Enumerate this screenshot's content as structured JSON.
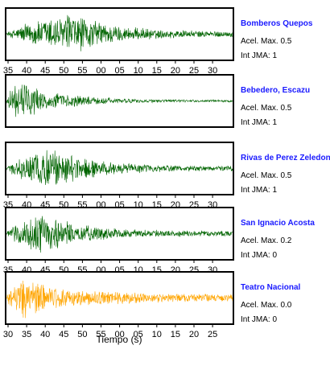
{
  "chart_data": {
    "type": "line",
    "xlabel": "Tiempo (s)",
    "stations": [
      {
        "name": "Bomberos Quepos",
        "acel_label": "Acel. Max. 0.5",
        "jma_label": "Int JMA: 1",
        "color": "#006400",
        "tick_labels": [
          "35",
          "40",
          "45",
          "50",
          "55",
          "00",
          "05",
          "10",
          "15",
          "20",
          "25",
          "30"
        ],
        "show_ticks": true,
        "envelope": {
          "peak_time": 0.3,
          "peak_amp": 0.95,
          "tail_amp": 0.12
        }
      },
      {
        "name": "Bebedero, Escazu",
        "acel_label": "Acel. Max. 0.5",
        "jma_label": "Int JMA: 1",
        "color": "#006400",
        "tick_labels": [],
        "show_ticks": false,
        "envelope": {
          "peak_time": 0.05,
          "peak_amp": 0.9,
          "tail_amp": 0.05
        }
      },
      {
        "name": "Rivas de Perez Zeledon",
        "acel_label": "Acel. Max. 0.5",
        "jma_label": "Int JMA: 1",
        "color": "#006400",
        "tick_labels": [
          "35",
          "40",
          "45",
          "50",
          "55",
          "00",
          "05",
          "10",
          "15",
          "20",
          "25",
          "30"
        ],
        "show_ticks": true,
        "envelope": {
          "peak_time": 0.2,
          "peak_amp": 0.95,
          "tail_amp": 0.1
        }
      },
      {
        "name": "San Ignacio Acosta",
        "acel_label": "Acel. Max. 0.2",
        "jma_label": "Int JMA: 0",
        "color": "#006400",
        "tick_labels": [
          "35",
          "40",
          "45",
          "50",
          "55",
          "00",
          "05",
          "10",
          "15",
          "20",
          "25",
          "30"
        ],
        "show_ticks": true,
        "envelope": {
          "peak_time": 0.15,
          "peak_amp": 0.95,
          "tail_amp": 0.12
        }
      },
      {
        "name": "Teatro Nacional",
        "acel_label": "Acel. Max. 0.0",
        "jma_label": "Int JMA: 0",
        "color": "#ffa500",
        "tick_labels": [
          "30",
          "35",
          "40",
          "45",
          "50",
          "55",
          "00",
          "05",
          "10",
          "15",
          "20",
          "25"
        ],
        "show_ticks": true,
        "envelope": {
          "peak_time": 0.08,
          "peak_amp": 0.95,
          "tail_amp": 0.2
        }
      }
    ]
  }
}
